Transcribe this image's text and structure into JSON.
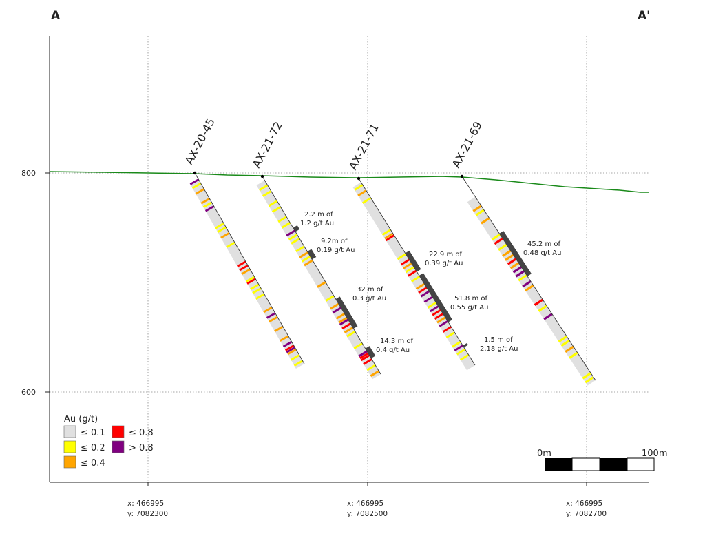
{
  "section": {
    "start_label": "A",
    "end_label": "A'"
  },
  "y_axis": {
    "ticks": [
      {
        "value": "800"
      },
      {
        "value": "600"
      }
    ]
  },
  "x_axis": {
    "ticks": [
      {
        "x": "x: 466995",
        "y": "y: 7082300"
      },
      {
        "x": "x: 466995",
        "y": "y: 7082500"
      },
      {
        "x": "x: 466995",
        "y": "y: 7082700"
      }
    ]
  },
  "holes": [
    {
      "name": "AX-20-45",
      "intercepts": []
    },
    {
      "name": "AX-21-72",
      "intercepts": [
        {
          "line1": "2.2 m of",
          "line2": "1.2 g/t Au"
        },
        {
          "line1": "9.2m of",
          "line2": "0.19 g/t Au"
        },
        {
          "line1": "32 m of",
          "line2": "0.3 g/t Au"
        },
        {
          "line1": "14.3 m of",
          "line2": "0.4 g/t Au"
        }
      ]
    },
    {
      "name": "AX-21-71",
      "intercepts": [
        {
          "line1": "22.9 m of",
          "line2": "0.39 g/t Au"
        },
        {
          "line1": "51.8 m of",
          "line2": "0.55 g/t Au"
        },
        {
          "line1": "1.5 m of",
          "line2": "2.18 g/t Au"
        }
      ]
    },
    {
      "name": "AX-21-69",
      "intercepts": [
        {
          "line1": "45.2 m of",
          "line2": "0.48 g/t Au"
        }
      ]
    }
  ],
  "legend": {
    "title": "Au (g/t)",
    "items": [
      {
        "label": "≤ 0.1",
        "color": "#e0e0e0"
      },
      {
        "label": "≤ 0.2",
        "color": "#ffff00"
      },
      {
        "label": "≤ 0.4",
        "color": "#ffa500"
      },
      {
        "label": "≤ 0.8",
        "color": "#ff0000"
      },
      {
        "label": "> 0.8",
        "color": "#800080"
      }
    ]
  },
  "scale_bar": {
    "start_label": "0m",
    "end_label": "100m"
  },
  "colors": {
    "topography": "#1a8a1a",
    "intercept": "#444444"
  }
}
